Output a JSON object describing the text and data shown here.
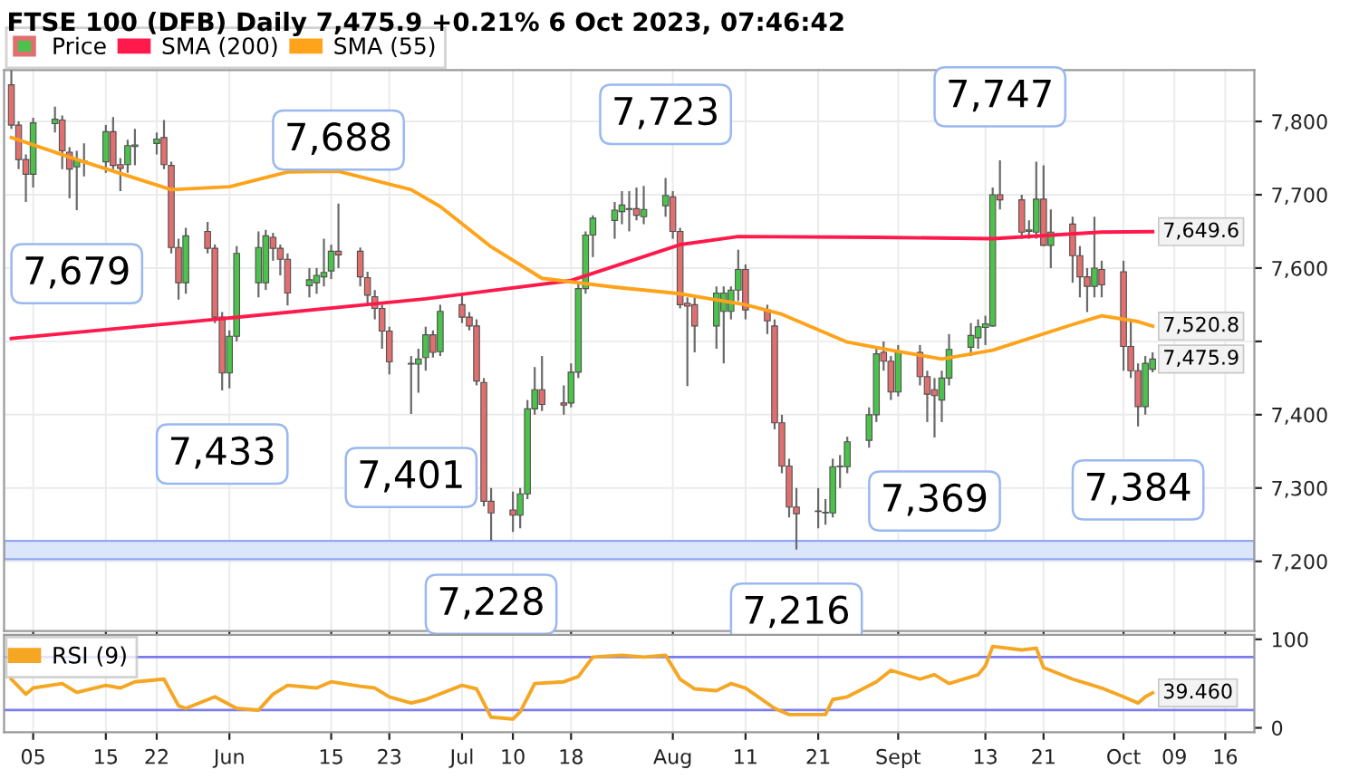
{
  "chart_data": [
    {
      "type": "candlestick",
      "title": "FTSE 100 (DFB) Daily 7,475.9 +0.21% 6 Oct 2023, 07:46:42",
      "xlim": [
        "2023-05-01",
        "2023-10-20"
      ],
      "xticks": [
        {
          "value": "2023-05-05",
          "label": null
        },
        {
          "value": "2023-05-15",
          "label": null
        },
        {
          "value": "2023-05-22",
          "label": null
        },
        {
          "value": "2023-06-01",
          "label": null
        },
        {
          "value": "2023-06-15",
          "label": null
        },
        {
          "value": "2023-06-23",
          "label": null
        },
        {
          "value": "2023-07-03",
          "label": null
        },
        {
          "value": "2023-07-10",
          "label": null
        },
        {
          "value": "2023-07-18",
          "label": null
        },
        {
          "value": "2023-08-01",
          "label": null
        },
        {
          "value": "2023-08-11",
          "label": null
        },
        {
          "value": "2023-08-21",
          "label": null
        },
        {
          "value": "2023-09-01",
          "label": null
        },
        {
          "value": "2023-09-13",
          "label": null
        },
        {
          "value": "2023-09-21",
          "label": null
        },
        {
          "value": "2023-10-02",
          "label": null
        },
        {
          "value": "2023-10-09",
          "label": null
        },
        {
          "value": "2023-10-16",
          "label": null
        }
      ],
      "ylim": [
        7105,
        7870
      ],
      "yticks": [
        {
          "value": 7200,
          "label": "7,200"
        },
        {
          "value": 7300,
          "label": "7,300"
        },
        {
          "value": 7400,
          "label": "7,400"
        },
        {
          "value": 7500,
          "label": null
        },
        {
          "value": 7600,
          "label": "7,600"
        },
        {
          "value": 7700,
          "label": "7,700"
        },
        {
          "value": 7800,
          "label": "7,800"
        }
      ],
      "tick_labels": "y",
      "grid": true,
      "legend": "top left",
      "bands": [
        {
          "axis": "y",
          "from": 7203,
          "to": 7228,
          "color": "#dce6fb"
        }
      ],
      "series": [
        {
          "name": "Price",
          "type": "candlestick",
          "colors": [
            "#e07070",
            "#e07070",
            "#e07070",
            "#4cc24c",
            "#4cc24c",
            "#e07070",
            "#e07070",
            "#4cc24c",
            "#4cc24c",
            "#4cc24c",
            "#e07070",
            "#e07070",
            "#4cc24c",
            "#4cc24c",
            "#4cc24c",
            "#e07070",
            "#e07070",
            "#e07070",
            "#4cc24c",
            "#e07070",
            "#e07070",
            "#e07070",
            "#4cc24c",
            "#4cc24c",
            "#4cc24c",
            "#4cc24c",
            "#e07070",
            "#e07070",
            "#e07070",
            "#4cc24c",
            "#4cc24c",
            "#4cc24c",
            "#4cc24c",
            "#e07070",
            "#e07070",
            "#e07070",
            "#e07070",
            "#e07070",
            "#e07070",
            "#e07070",
            "#4cc24c",
            "#4cc24c",
            "#e07070",
            "#4cc24c",
            "#e07070",
            "#e07070",
            "#e07070",
            "#e07070",
            "#e07070",
            "#e07070",
            "#4cc24c",
            "#4cc24c",
            "#4cc24c",
            "#e07070",
            "#e07070",
            "#4cc24c",
            "#4cc24c",
            "#4cc24c",
            "#4cc24c",
            "#4cc24c",
            "#4cc24c",
            "#4cc24c",
            "#e07070",
            "#4cc24c",
            "#4cc24c",
            "#e07070",
            "#e07070",
            "#e07070",
            "#e07070",
            "#4cc24c",
            "#4cc24c",
            "#4cc24c",
            "#4cc24c",
            "#e07070",
            "#e07070",
            "#e07070",
            "#e07070",
            "#e07070",
            "#e07070",
            "#4cc24c",
            "#4cc24c",
            "#4cc24c",
            "#4cc24c",
            "#4cc24c",
            "#4cc24c",
            "#4cc24c",
            "#e07070",
            "#e07070",
            "#4cc24c",
            "#e07070",
            "#e07070",
            "#e07070",
            "#4cc24c",
            "#4cc24c",
            "#4cc24c",
            "#4cc24c",
            "#4cc24c",
            "#4cc24c",
            "#e07070",
            "#e07070",
            "#4cc24c",
            "#4cc24c",
            "#e07070",
            "#4cc24c",
            "#e07070",
            "#e07070",
            "#e07070",
            "#4cc24c",
            "#e07070",
            "#e07070",
            "#e07070",
            "#e07070",
            "#4cc24c",
            "#4cc24c"
          ],
          "x": [
            "2023-05-02",
            "2023-05-03",
            "2023-05-04",
            "2023-05-05",
            "2023-05-08",
            "2023-05-09",
            "2023-05-10",
            "2023-05-11",
            "2023-05-12",
            "2023-05-15",
            "2023-05-16",
            "2023-05-17",
            "2023-05-18",
            "2023-05-19",
            "2023-05-22",
            "2023-05-23",
            "2023-05-24",
            "2023-05-25",
            "2023-05-26",
            "2023-05-29",
            "2023-05-30",
            "2023-05-31",
            "2023-06-01",
            "2023-06-02",
            "2023-06-05",
            "2023-06-06",
            "2023-06-07",
            "2023-06-08",
            "2023-06-09",
            "2023-06-12",
            "2023-06-13",
            "2023-06-14",
            "2023-06-15",
            "2023-06-16",
            "2023-06-19",
            "2023-06-20",
            "2023-06-21",
            "2023-06-22",
            "2023-06-23",
            "2023-06-26",
            "2023-06-27",
            "2023-06-28",
            "2023-06-29",
            "2023-06-30",
            "2023-07-03",
            "2023-07-04",
            "2023-07-05",
            "2023-07-06",
            "2023-07-07",
            "2023-07-10",
            "2023-07-11",
            "2023-07-12",
            "2023-07-13",
            "2023-07-14",
            "2023-07-17",
            "2023-07-18",
            "2023-07-19",
            "2023-07-20",
            "2023-07-21",
            "2023-07-24",
            "2023-07-25",
            "2023-07-26",
            "2023-07-27",
            "2023-07-28",
            "2023-07-31",
            "2023-08-01",
            "2023-08-02",
            "2023-08-03",
            "2023-08-04",
            "2023-08-07",
            "2023-08-08",
            "2023-08-09",
            "2023-08-10",
            "2023-08-11",
            "2023-08-14",
            "2023-08-15",
            "2023-08-16",
            "2023-08-17",
            "2023-08-18",
            "2023-08-21",
            "2023-08-22",
            "2023-08-23",
            "2023-08-24",
            "2023-08-25",
            "2023-08-28",
            "2023-08-29",
            "2023-08-30",
            "2023-08-31",
            "2023-09-01",
            "2023-09-04",
            "2023-09-05",
            "2023-09-06",
            "2023-09-07",
            "2023-09-08",
            "2023-09-11",
            "2023-09-12",
            "2023-09-13",
            "2023-09-14",
            "2023-09-15",
            "2023-09-18",
            "2023-09-19",
            "2023-09-20",
            "2023-09-21",
            "2023-09-22",
            "2023-09-25",
            "2023-09-26",
            "2023-09-27",
            "2023-09-28",
            "2023-09-29",
            "2023-10-02",
            "2023-10-03",
            "2023-10-04",
            "2023-10-05",
            "2023-10-06"
          ],
          "ohlc": [
            [
              7850,
              7870,
              7790,
              7795
            ],
            [
              7795,
              7800,
              7735,
              7748
            ],
            [
              7748,
              7755,
              7690,
              7728
            ],
            [
              7728,
              7805,
              7710,
              7798
            ],
            [
              7797,
              7820,
              7785,
              7803
            ],
            [
              7802,
              7808,
              7735,
              7760
            ],
            [
              7758,
              7765,
              7695,
              7735
            ],
            [
              7738,
              7760,
              7679,
              7747
            ],
            [
              7745,
              7770,
              7725,
              7746
            ],
            [
              7745,
              7795,
              7730,
              7786
            ],
            [
              7786,
              7806,
              7735,
              7740
            ],
            [
              7741,
              7750,
              7705,
              7736
            ],
            [
              7741,
              7775,
              7730,
              7767
            ],
            [
              7766,
              7790,
              7740,
              7768
            ],
            [
              7770,
              7785,
              7755,
              7776
            ],
            [
              7778,
              7802,
              7735,
              7741
            ],
            [
              7740,
              7745,
              7620,
              7628
            ],
            [
              7628,
              7640,
              7557,
              7580
            ],
            [
              7580,
              7655,
              7565,
              7644
            ],
            [
              7650,
              7663,
              7620,
              7627
            ],
            [
              7627,
              7632,
              7525,
              7533
            ],
            [
              7533,
              7540,
              7433,
              7457
            ],
            [
              7457,
              7515,
              7436,
              7507
            ],
            [
              7507,
              7630,
              7500,
              7620
            ],
            [
              7580,
              7650,
              7560,
              7628
            ],
            [
              7580,
              7652,
              7570,
              7644
            ],
            [
              7642,
              7648,
              7610,
              7627
            ],
            [
              7627,
              7632,
              7590,
              7612
            ],
            [
              7612,
              7620,
              7549,
              7566
            ],
            [
              7576,
              7600,
              7560,
              7584
            ],
            [
              7580,
              7600,
              7565,
              7590
            ],
            [
              7588,
              7640,
              7575,
              7594
            ],
            [
              7596,
              7632,
              7585,
              7623
            ],
            [
              7623,
              7688,
              7600,
              7618
            ],
            [
              7623,
              7628,
              7575,
              7588
            ],
            [
              7587,
              7595,
              7550,
              7563
            ],
            [
              7561,
              7570,
              7530,
              7545
            ],
            [
              7545,
              7550,
              7490,
              7514
            ],
            [
              7514,
              7520,
              7455,
              7472
            ],
            [
              7470,
              7480,
              7401,
              7469
            ],
            [
              7469,
              7490,
              7430,
              7476
            ],
            [
              7478,
              7520,
              7460,
              7509
            ],
            [
              7509,
              7515,
              7478,
              7485
            ],
            [
              7486,
              7550,
              7480,
              7541
            ],
            [
              7550,
              7564,
              7525,
              7533
            ],
            [
              7533,
              7540,
              7515,
              7521
            ],
            [
              7521,
              7530,
              7440,
              7446
            ],
            [
              7444,
              7450,
              7275,
              7282
            ],
            [
              7282,
              7300,
              7228,
              7266
            ],
            [
              7270,
              7295,
              7240,
              7263
            ],
            [
              7263,
              7300,
              7245,
              7292
            ],
            [
              7292,
              7420,
              7285,
              7408
            ],
            [
              7408,
              7465,
              7400,
              7434
            ],
            [
              7434,
              7480,
              7405,
              7414
            ],
            [
              7416,
              7440,
              7400,
              7413
            ],
            [
              7416,
              7470,
              7410,
              7458
            ],
            [
              7458,
              7580,
              7450,
              7572
            ],
            [
              7572,
              7650,
              7565,
              7645
            ],
            [
              7645,
              7672,
              7615,
              7668
            ],
            [
              7665,
              7690,
              7640,
              7679
            ],
            [
              7677,
              7705,
              7660,
              7686
            ],
            [
              7680,
              7705,
              7650,
              7681
            ],
            [
              7681,
              7710,
              7665,
              7672
            ],
            [
              7670,
              7712,
              7660,
              7680
            ],
            [
              7685,
              7723,
              7670,
              7699
            ],
            [
              7697,
              7705,
              7640,
              7650
            ],
            [
              7650,
              7655,
              7545,
              7550
            ],
            [
              7552,
              7560,
              7439,
              7548
            ],
            [
              7550,
              7560,
              7485,
              7521
            ],
            [
              7521,
              7575,
              7490,
              7566
            ],
            [
              7541,
              7575,
              7470,
              7566
            ],
            [
              7541,
              7575,
              7530,
              7570
            ],
            [
              7570,
              7625,
              7555,
              7598
            ],
            [
              7598,
              7605,
              7530,
              7543
            ],
            [
              7543,
              7550,
              7510,
              7528
            ],
            [
              7521,
              7530,
              7380,
              7389
            ],
            [
              7389,
              7400,
              7320,
              7330
            ],
            [
              7330,
              7340,
              7260,
              7274
            ],
            [
              7274,
              7300,
              7216,
              7265
            ],
            [
              7268,
              7300,
              7245,
              7268
            ],
            [
              7266,
              7285,
              7250,
              7266
            ],
            [
              7266,
              7340,
              7260,
              7329
            ],
            [
              7329,
              7345,
              7300,
              7330
            ],
            [
              7329,
              7370,
              7320,
              7363
            ],
            [
              7365,
              7410,
              7355,
              7400
            ],
            [
              7400,
              7490,
              7390,
              7483
            ],
            [
              7485,
              7500,
              7460,
              7473
            ],
            [
              7473,
              7480,
              7420,
              7431
            ],
            [
              7431,
              7495,
              7425,
              7485
            ],
            [
              7485,
              7495,
              7440,
              7452
            ],
            [
              7452,
              7460,
              7390,
              7428
            ],
            [
              7434,
              7450,
              7369,
              7426
            ],
            [
              7420,
              7460,
              7390,
              7450
            ],
            [
              7450,
              7510,
              7440,
              7489
            ],
            [
              7492,
              7525,
              7480,
              7508
            ],
            [
              7505,
              7530,
              7490,
              7520
            ],
            [
              7519,
              7535,
              7495,
              7524
            ],
            [
              7521,
              7710,
              7520,
              7700
            ],
            [
              7700,
              7747,
              7680,
              7693
            ],
            [
              7693,
              7700,
              7640,
              7649
            ],
            [
              7650,
              7665,
              7640,
              7652
            ],
            [
              7649,
              7745,
              7640,
              7694
            ],
            [
              7694,
              7740,
              7630,
              7631
            ],
            [
              7631,
              7680,
              7600,
              7649
            ],
            [
              7660,
              7670,
              7580,
              7617
            ],
            [
              7617,
              7630,
              7560,
              7588
            ],
            [
              7588,
              7600,
              7540,
              7575
            ],
            [
              7575,
              7670,
              7560,
              7600
            ],
            [
              7598,
              7610,
              7560,
              7577
            ],
            [
              7595,
              7610,
              7460,
              7493
            ],
            [
              7493,
              7530,
              7450,
              7460
            ],
            [
              7460,
              7470,
              7384,
              7411
            ],
            [
              7411,
              7480,
              7400,
              7470
            ],
            [
              7462,
              7485,
              7458,
              7475.9
            ]
          ]
        },
        {
          "name": "SMA (200)",
          "type": "line",
          "color": "#ff1a4b",
          "x": [
            "2023-05-02",
            "2023-05-30",
            "2023-06-28",
            "2023-07-18",
            "2023-08-02",
            "2023-08-10",
            "2023-08-29",
            "2023-09-14",
            "2023-09-29",
            "2023-10-06"
          ],
          "values": [
            7504,
            7530,
            7558,
            7583,
            7632,
            7643,
            7642,
            7640,
            7649,
            7649.6
          ]
        },
        {
          "name": "SMA (55)",
          "type": "line",
          "color": "#ffa31a",
          "x": [
            "2023-05-02",
            "2023-05-11",
            "2023-05-24",
            "2023-06-01",
            "2023-06-09",
            "2023-06-16",
            "2023-06-26",
            "2023-06-30",
            "2023-07-07",
            "2023-07-14",
            "2023-07-24",
            "2023-08-02",
            "2023-08-11",
            "2023-08-16",
            "2023-08-25",
            "2023-08-31",
            "2023-09-07",
            "2023-09-14",
            "2023-09-25",
            "2023-09-29",
            "2023-10-04",
            "2023-10-06"
          ],
          "values": [
            7778,
            7748,
            7707,
            7711,
            7731,
            7732,
            7707,
            7684,
            7629,
            7586,
            7574,
            7565,
            7550,
            7537,
            7499,
            7488,
            7476,
            7488,
            7523,
            7535,
            7527,
            7520.8
          ]
        }
      ],
      "annotations": [
        {
          "text": "7,679",
          "x": "2023-05-11",
          "y": 7679
        },
        {
          "text": "7,433",
          "x": "2023-05-31",
          "y": 7433
        },
        {
          "text": "7,688",
          "x": "2023-06-16",
          "y": 7688
        },
        {
          "text": "7,401",
          "x": "2023-06-26",
          "y": 7401
        },
        {
          "text": "7,228",
          "x": "2023-07-07",
          "y": 7228
        },
        {
          "text": "7,723",
          "x": "2023-07-31",
          "y": 7723
        },
        {
          "text": "7,216",
          "x": "2023-08-18",
          "y": 7216
        },
        {
          "text": "7,369",
          "x": "2023-09-06",
          "y": 7369
        },
        {
          "text": "7,747",
          "x": "2023-09-15",
          "y": 7747
        },
        {
          "text": "7,384",
          "x": "2023-10-04",
          "y": 7384
        },
        {
          "text": "7,649.6",
          "x": "2023-10-06",
          "y": 7649.6
        },
        {
          "text": "7,520.8",
          "x": "2023-10-06",
          "y": 7520.8
        },
        {
          "text": "7,475.9",
          "x": "2023-10-06",
          "y": 7475.9
        }
      ]
    },
    {
      "type": "line",
      "xlim": [
        "2023-05-01",
        "2023-10-20"
      ],
      "xticks": [
        {
          "value": "2023-05-05",
          "label": "05"
        },
        {
          "value": "2023-05-15",
          "label": "15"
        },
        {
          "value": "2023-05-22",
          "label": "22"
        },
        {
          "value": "2023-06-01",
          "label": "Jun"
        },
        {
          "value": "2023-06-15",
          "label": "15"
        },
        {
          "value": "2023-06-23",
          "label": "23"
        },
        {
          "value": "2023-07-03",
          "label": "Jul"
        },
        {
          "value": "2023-07-10",
          "label": "10"
        },
        {
          "value": "2023-07-18",
          "label": "18"
        },
        {
          "value": "2023-08-01",
          "label": "Aug"
        },
        {
          "value": "2023-08-11",
          "label": "11"
        },
        {
          "value": "2023-08-21",
          "label": "21"
        },
        {
          "value": "2023-09-01",
          "label": "Sept"
        },
        {
          "value": "2023-09-13",
          "label": "13"
        },
        {
          "value": "2023-09-21",
          "label": "21"
        },
        {
          "value": "2023-10-02",
          "label": "Oct"
        },
        {
          "value": "2023-10-09",
          "label": "09"
        },
        {
          "value": "2023-10-16",
          "label": "16"
        }
      ],
      "ylim": [
        -5,
        105
      ],
      "yticks": [
        0,
        100
      ],
      "grid": "x",
      "legend": "top left",
      "ref_lines": [
        {
          "axis": "y",
          "value": 80,
          "color": "#7b7bf0"
        },
        {
          "axis": "y",
          "value": 20,
          "color": "#7b7bf0"
        }
      ],
      "series": [
        {
          "name": "RSI (9)",
          "color": "#f5a623",
          "x": [
            "2023-05-02",
            "2023-05-04",
            "2023-05-05",
            "2023-05-09",
            "2023-05-11",
            "2023-05-15",
            "2023-05-17",
            "2023-05-19",
            "2023-05-23",
            "2023-05-25",
            "2023-05-26",
            "2023-05-30",
            "2023-06-02",
            "2023-06-05",
            "2023-06-07",
            "2023-06-09",
            "2023-06-13",
            "2023-06-15",
            "2023-06-19",
            "2023-06-21",
            "2023-06-23",
            "2023-06-26",
            "2023-06-28",
            "2023-07-03",
            "2023-07-05",
            "2023-07-07",
            "2023-07-10",
            "2023-07-11",
            "2023-07-13",
            "2023-07-17",
            "2023-07-19",
            "2023-07-21",
            "2023-07-25",
            "2023-07-28",
            "2023-07-31",
            "2023-08-02",
            "2023-08-04",
            "2023-08-07",
            "2023-08-09",
            "2023-08-11",
            "2023-08-15",
            "2023-08-17",
            "2023-08-22",
            "2023-08-23",
            "2023-08-25",
            "2023-08-29",
            "2023-08-31",
            "2023-09-04",
            "2023-09-06",
            "2023-09-08",
            "2023-09-12",
            "2023-09-13",
            "2023-09-14",
            "2023-09-18",
            "2023-09-20",
            "2023-09-21",
            "2023-09-25",
            "2023-09-27",
            "2023-09-29",
            "2023-10-02",
            "2023-10-04",
            "2023-10-05",
            "2023-10-06"
          ],
          "values": [
            55,
            38,
            45,
            50,
            40,
            48,
            45,
            52,
            55,
            25,
            22,
            35,
            22,
            20,
            38,
            48,
            45,
            52,
            47,
            45,
            35,
            28,
            32,
            48,
            44,
            12,
            10,
            18,
            50,
            52,
            58,
            80,
            82,
            80,
            82,
            55,
            44,
            42,
            50,
            45,
            22,
            15,
            15,
            32,
            35,
            52,
            65,
            55,
            60,
            50,
            60,
            70,
            92,
            88,
            90,
            68,
            55,
            50,
            45,
            35,
            28,
            35,
            39.46
          ]
        }
      ],
      "annotations": [
        {
          "text": "39.460",
          "x": "2023-10-06",
          "y": 39.46
        }
      ]
    }
  ]
}
